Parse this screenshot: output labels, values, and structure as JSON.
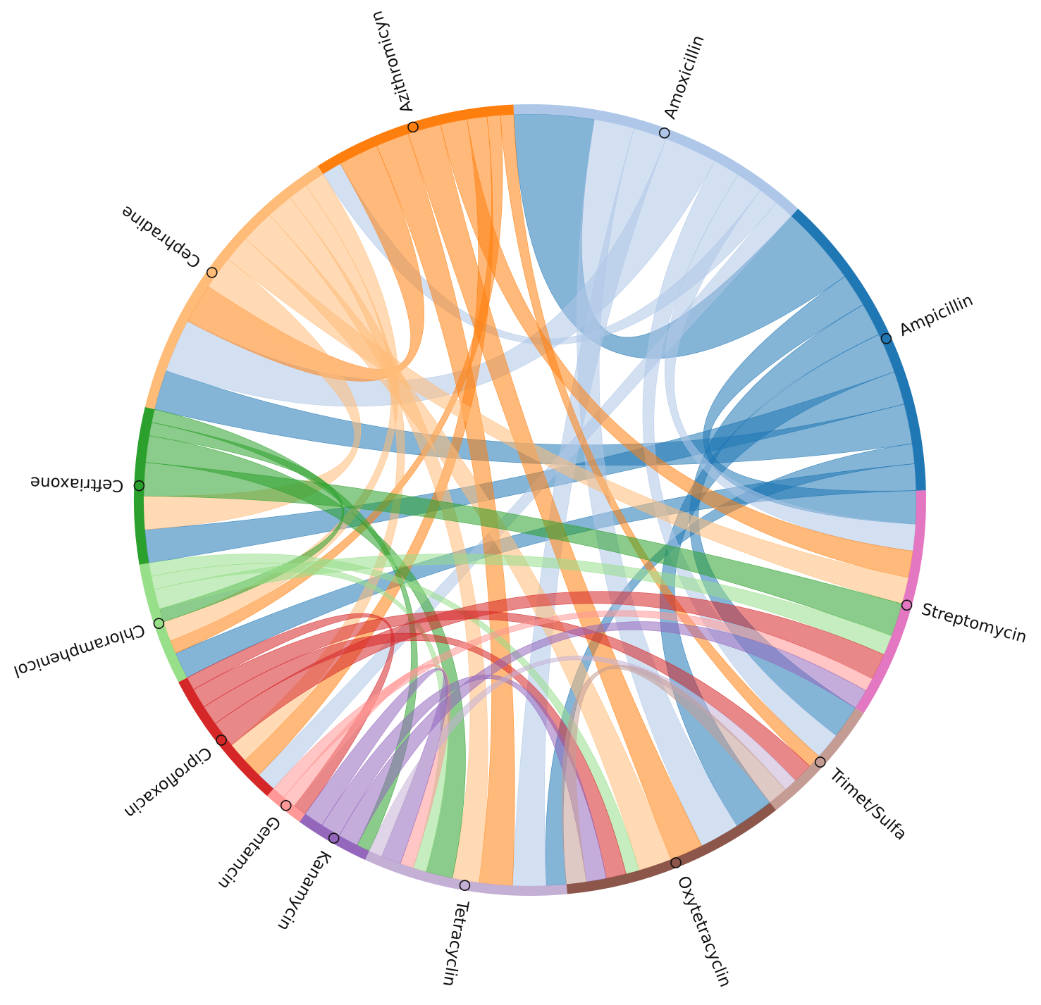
{
  "chart_data": {
    "type": "chord",
    "nodes": [
      {
        "name": "Amoxicillin",
        "color": "#aec7e8"
      },
      {
        "name": "Ampicillin",
        "color": "#1f77b4"
      },
      {
        "name": "Streptomycin",
        "color": "#e377c2"
      },
      {
        "name": "Trimet/Sulfa",
        "color": "#c49c94"
      },
      {
        "name": "Oxytetracyclin",
        "color": "#8c564b"
      },
      {
        "name": "Tetracyclin",
        "color": "#c5b0d5"
      },
      {
        "name": "Kanamycin",
        "color": "#9467bd"
      },
      {
        "name": "Gentamcin",
        "color": "#ff9896"
      },
      {
        "name": "Ciprofloxacin",
        "color": "#d62728"
      },
      {
        "name": "Chloramphenicol",
        "color": "#98df8a"
      },
      {
        "name": "Ceftriaxone",
        "color": "#2ca02c"
      },
      {
        "name": "Cephradine",
        "color": "#ffbb78"
      },
      {
        "name": "Azithromicyn",
        "color": "#ff7f0e"
      }
    ],
    "links": [
      {
        "source": "Ampicillin",
        "target": "Amoxicillin",
        "value": 12
      },
      {
        "source": "Ampicillin",
        "target": "Streptomycin",
        "value": 5
      },
      {
        "source": "Ampicillin",
        "target": "Trimet/Sulfa",
        "value": 5
      },
      {
        "source": "Ampicillin",
        "target": "Oxytetracyclin",
        "value": 6
      },
      {
        "source": "Ampicillin",
        "target": "Ceftriaxone",
        "value": 5
      },
      {
        "source": "Ampicillin",
        "target": "Cephradine",
        "value": 6
      },
      {
        "source": "Ampicillin",
        "target": "Tetracyclin",
        "value": 3
      },
      {
        "source": "Ampicillin",
        "target": "Chloramphenicol",
        "value": 4
      },
      {
        "source": "Amoxicillin",
        "target": "Oxytetracyclin",
        "value": 6
      },
      {
        "source": "Amoxicillin",
        "target": "Tetracyclin",
        "value": 5
      },
      {
        "source": "Amoxicillin",
        "target": "Cephradine",
        "value": 8
      },
      {
        "source": "Amoxicillin",
        "target": "Trimet/Sulfa",
        "value": 4
      },
      {
        "source": "Amoxicillin",
        "target": "Streptomycin",
        "value": 4
      },
      {
        "source": "Amoxicillin",
        "target": "Azithromicyn",
        "value": 3
      },
      {
        "source": "Amoxicillin",
        "target": "Ciprofloxacin",
        "value": 3
      },
      {
        "source": "Azithromicyn",
        "target": "Cephradine",
        "value": 6
      },
      {
        "source": "Azithromicyn",
        "target": "Tetracyclin",
        "value": 5
      },
      {
        "source": "Azithromicyn",
        "target": "Oxytetracyclin",
        "value": 5
      },
      {
        "source": "Azithromicyn",
        "target": "Streptomycin",
        "value": 4
      },
      {
        "source": "Azithromicyn",
        "target": "Ciprofloxacin",
        "value": 3
      },
      {
        "source": "Azithromicyn",
        "target": "Chloramphenicol",
        "value": 2
      },
      {
        "source": "Azithromicyn",
        "target": "Trimet/Sulfa",
        "value": 2
      },
      {
        "source": "Cephradine",
        "target": "Ceftriaxone",
        "value": 5
      },
      {
        "source": "Cephradine",
        "target": "Streptomycin",
        "value": 4
      },
      {
        "source": "Cephradine",
        "target": "Oxytetracyclin",
        "value": 5
      },
      {
        "source": "Cephradine",
        "target": "Tetracyclin",
        "value": 4
      },
      {
        "source": "Cephradine",
        "target": "Ciprofloxacin",
        "value": 3
      },
      {
        "source": "Cephradine",
        "target": "Chloramphenicol",
        "value": 3
      },
      {
        "source": "Ceftriaxone",
        "target": "Streptomycin",
        "value": 5
      },
      {
        "source": "Ceftriaxone",
        "target": "Tetracyclin",
        "value": 4
      },
      {
        "source": "Ceftriaxone",
        "target": "Chloramphenicol",
        "value": 2
      },
      {
        "source": "Ceftriaxone",
        "target": "Kanamycin",
        "value": 2
      },
      {
        "source": "Chloramphenicol",
        "target": "Streptomycin",
        "value": 3
      },
      {
        "source": "Chloramphenicol",
        "target": "Tetracyclin",
        "value": 2
      },
      {
        "source": "Chloramphenicol",
        "target": "Oxytetracyclin",
        "value": 2
      },
      {
        "source": "Ciprofloxacin",
        "target": "Streptomycin",
        "value": 4
      },
      {
        "source": "Ciprofloxacin",
        "target": "Oxytetracyclin",
        "value": 3
      },
      {
        "source": "Ciprofloxacin",
        "target": "Trimet/Sulfa",
        "value": 3
      },
      {
        "source": "Ciprofloxacin",
        "target": "Gentamcin",
        "value": 2
      },
      {
        "source": "Gentamcin",
        "target": "Tetracyclin",
        "value": 2
      },
      {
        "source": "Gentamcin",
        "target": "Streptomycin",
        "value": 2
      },
      {
        "source": "Kanamycin",
        "target": "Streptomycin",
        "value": 3
      },
      {
        "source": "Kanamycin",
        "target": "Oxytetracyclin",
        "value": 3
      },
      {
        "source": "Kanamycin",
        "target": "Tetracyclin",
        "value": 3
      },
      {
        "source": "Tetracyclin",
        "target": "Trimet/Sulfa",
        "value": 2
      },
      {
        "source": "Trimet/Sulfa",
        "target": "Oxytetracyclin",
        "value": 3
      }
    ]
  }
}
